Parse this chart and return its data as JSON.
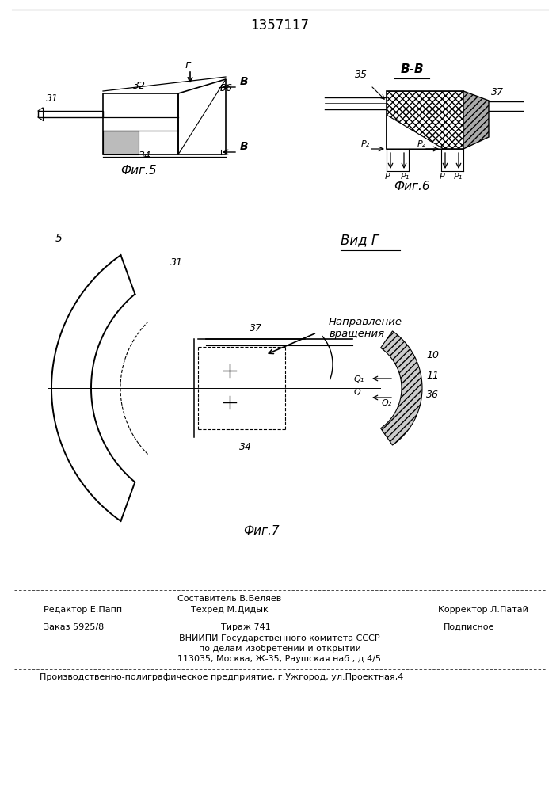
{
  "title": "1357117",
  "fig5_label": "Фиг.5",
  "fig6_label": "Фиг.6",
  "fig7_label": "Фиг.7",
  "view_g_label": "Вид Г",
  "view_bb_label": "В-В",
  "direction_label": "Направление\nвращения",
  "footer_line1_mid": "Составитель В.Беляев",
  "footer_line1_left": "Редактор Е.Папп",
  "footer_line1_mid2": "Техред М.Дидык",
  "footer_line1_right": "Корректор Л.Патай",
  "footer_line2_left": "Заказ 5925/8",
  "footer_line2_mid": "Тираж 741",
  "footer_line2_right": "Подписное",
  "footer_line3": "ВНИИПИ Государственного комитета СССР",
  "footer_line4": "по делам изобретений и открытий",
  "footer_line5": "113035, Москва, Ж-35, Раушская наб., д.4/5",
  "footer_line6": "Производственно-полиграфическое предприятие, г.Ужгород, ул.Проектная,4",
  "bg_color": "#ffffff"
}
